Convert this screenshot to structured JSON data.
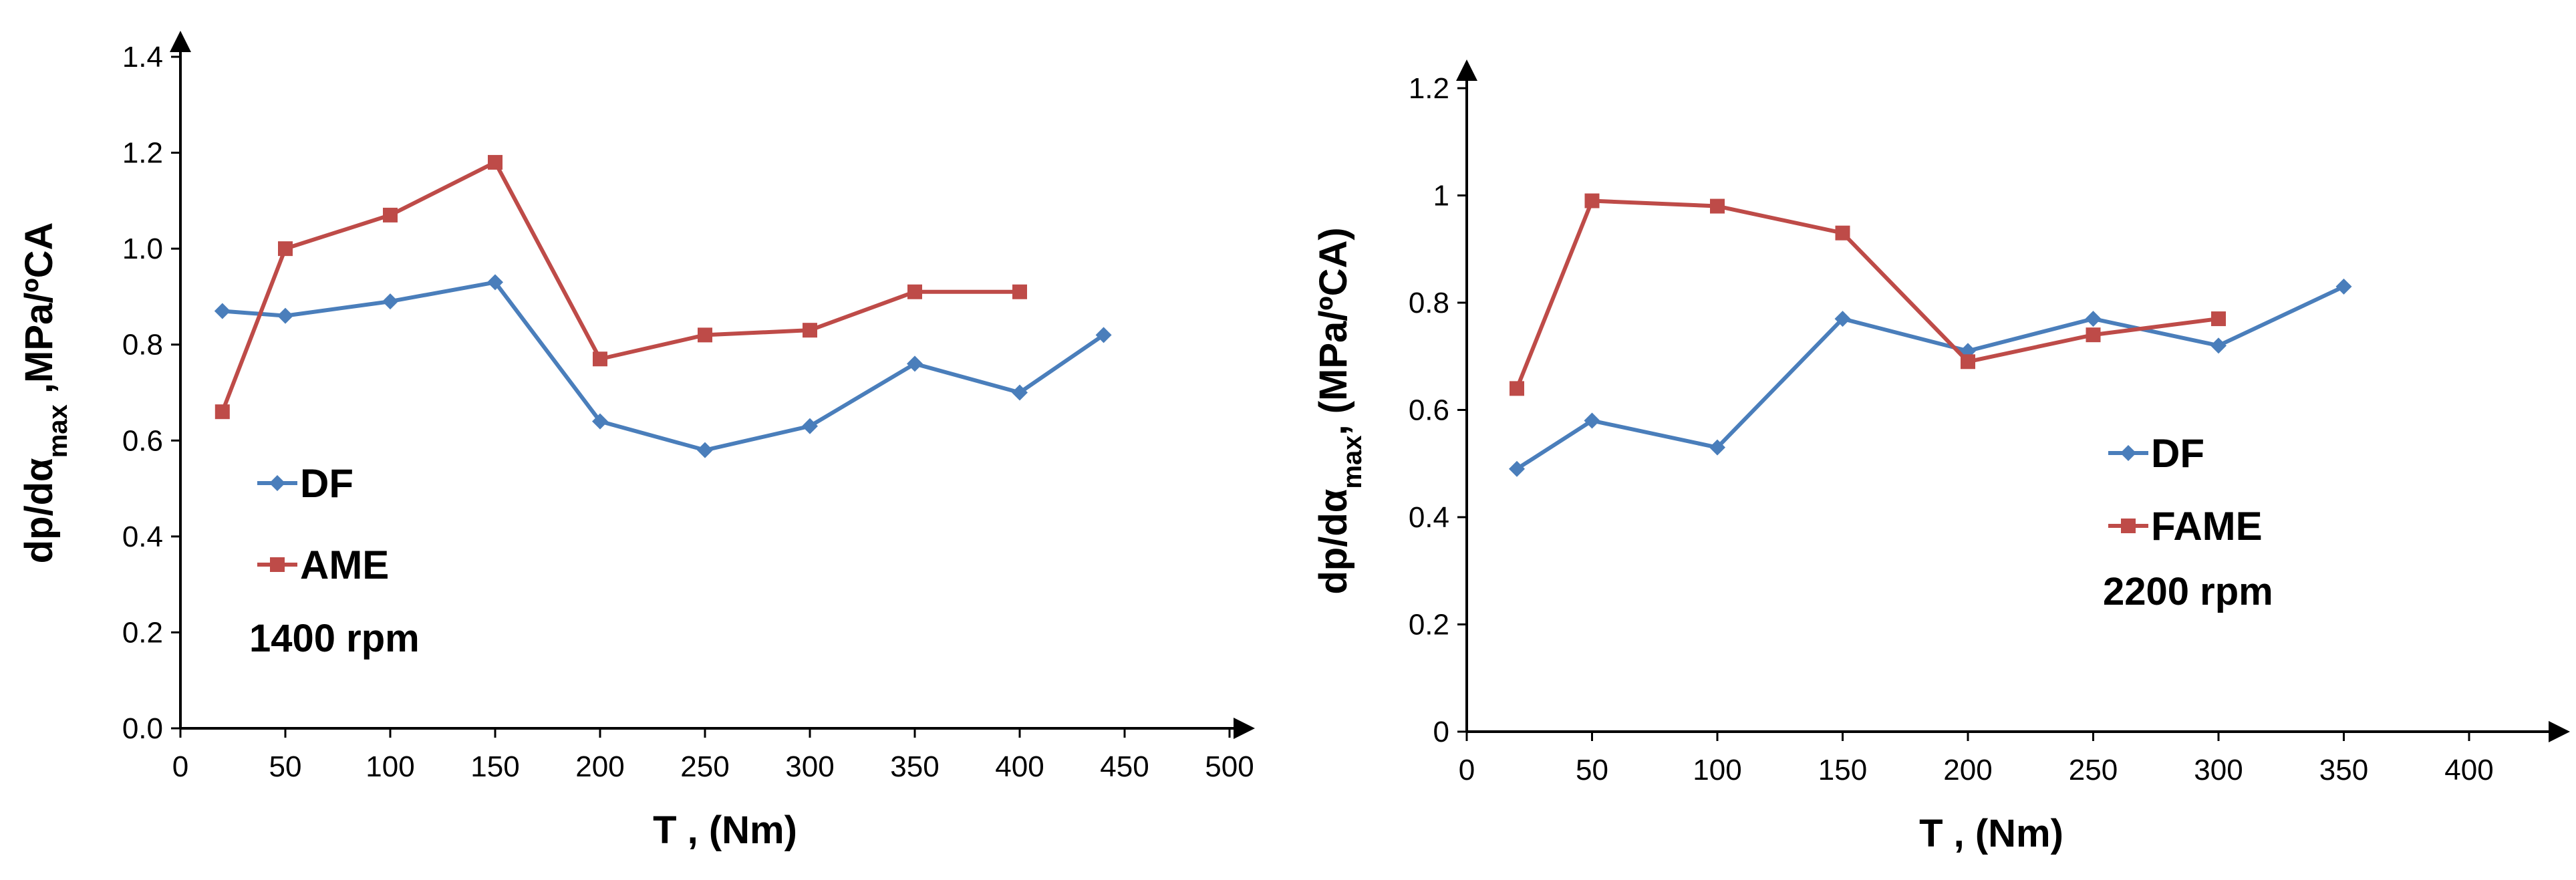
{
  "chart_data": [
    {
      "type": "line",
      "annotation": "1400 rpm",
      "xlabel": "T , (Nm)",
      "ylabel": {
        "main": "dp/dα",
        "sub": "max",
        "tail": " ,MPa/ºCA"
      },
      "xlim": [
        0,
        500
      ],
      "ylim": [
        0,
        1.4
      ],
      "xticks": [
        0,
        50,
        100,
        150,
        200,
        250,
        300,
        350,
        400,
        450,
        500
      ],
      "xtick_labels": [
        "0",
        "50",
        "100",
        "150",
        "200",
        "250",
        "300",
        "350",
        "400",
        "450",
        "500"
      ],
      "yticks": [
        0,
        0.2,
        0.4,
        0.6,
        0.8,
        1.0,
        1.2,
        1.4
      ],
      "ytick_labels": [
        "0.0",
        "0.2",
        "0.4",
        "0.6",
        "0.8",
        "1.0",
        "1.2",
        "1.4"
      ],
      "legend_position": "left-middle",
      "series": [
        {
          "name": "DF",
          "color": "#4a7ebb",
          "marker": "diamond",
          "x": [
            20,
            50,
            100,
            150,
            200,
            250,
            300,
            350,
            400,
            440
          ],
          "y": [
            0.87,
            0.86,
            0.89,
            0.93,
            0.64,
            0.58,
            0.63,
            0.76,
            0.7,
            0.82
          ]
        },
        {
          "name": "AME",
          "color": "#be4b48",
          "marker": "square",
          "x": [
            20,
            50,
            100,
            150,
            200,
            250,
            300,
            350,
            400
          ],
          "y": [
            0.66,
            1.0,
            1.07,
            1.18,
            0.77,
            0.82,
            0.83,
            0.91,
            0.91
          ]
        }
      ]
    },
    {
      "type": "line",
      "annotation": "2200 rpm",
      "xlabel": "T , (Nm)",
      "ylabel": {
        "main": "dp/dα",
        "sub": "max",
        "tail": ", (MPa/ºCA)"
      },
      "xlim": [
        0,
        420
      ],
      "ylim": [
        0,
        1.2
      ],
      "xticks": [
        0,
        50,
        100,
        150,
        200,
        250,
        300,
        350,
        400
      ],
      "xtick_labels": [
        "0",
        "50",
        "100",
        "150",
        "200",
        "250",
        "300",
        "350",
        "400"
      ],
      "yticks": [
        0,
        0.2,
        0.4,
        0.6,
        0.8,
        1.0,
        1.2
      ],
      "ytick_labels": [
        "0",
        "0.2",
        "0.4",
        "0.6",
        "0.8",
        "1",
        "1.2"
      ],
      "legend_position": "right-middle",
      "series": [
        {
          "name": "DF",
          "color": "#4a7ebb",
          "marker": "diamond",
          "x": [
            20,
            50,
            100,
            150,
            200,
            250,
            300,
            350
          ],
          "y": [
            0.49,
            0.58,
            0.53,
            0.77,
            0.71,
            0.77,
            0.72,
            0.83
          ]
        },
        {
          "name": "FAME",
          "color": "#be4b48",
          "marker": "square",
          "x": [
            20,
            50,
            100,
            150,
            200,
            250,
            300
          ],
          "y": [
            0.64,
            0.99,
            0.98,
            0.93,
            0.69,
            0.74,
            0.77
          ]
        }
      ]
    }
  ]
}
